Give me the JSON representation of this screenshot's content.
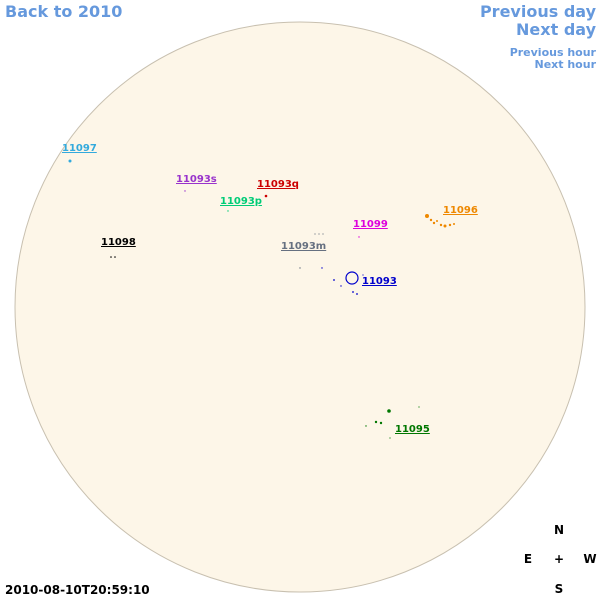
{
  "nav": {
    "back": "Back to 2010",
    "previous_day": "Previous day",
    "next_day": "Next day",
    "previous_hour": "Previous hour",
    "next_hour": "Next hour"
  },
  "regions": [
    {
      "label": "11097",
      "color": "#33aadd"
    },
    {
      "label": "11093s",
      "color": "#9933cc"
    },
    {
      "label": "11093q",
      "color": "#cc0000"
    },
    {
      "label": "11093p",
      "color": "#00cc77"
    },
    {
      "label": "11098",
      "color": "#000000"
    },
    {
      "label": "11093m",
      "color": "#667080"
    },
    {
      "label": "11099",
      "color": "#dd00dd"
    },
    {
      "label": "11096",
      "color": "#ee8800"
    },
    {
      "label": "11093",
      "color": "#0000cc"
    },
    {
      "label": "11095",
      "color": "#007700"
    }
  ],
  "compass": {
    "north": "N",
    "east": "E",
    "center": "+",
    "west": "W",
    "south": "S"
  },
  "timestamp": "2010-08-10T20:59:10"
}
